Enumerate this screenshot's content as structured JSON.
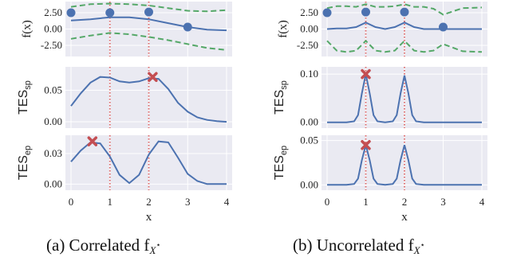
{
  "colors": {
    "panel_bg": "#EAEAF2",
    "grid": "#FFFFFF",
    "curve": "#4C72B0",
    "bounds": "#55A868",
    "vline": "#DD6666",
    "marker": "#C44E52",
    "point": "#4C72B0"
  },
  "captions": [
    {
      "prefix": "(a) Correlated f",
      "sub": "X",
      "sup": "⋆"
    },
    {
      "prefix": "(b) Uncorrelated f",
      "sub": "X",
      "sup": "⋆"
    }
  ],
  "shared": {
    "xlabel": "x",
    "x_ticks": [
      "0",
      "1",
      "2",
      "3",
      "4"
    ],
    "vlines_at": [
      1,
      2
    ]
  },
  "chart_data": [
    {
      "id": "a-top",
      "type": "line",
      "xlim": [
        0,
        4
      ],
      "ylim": [
        -4.2,
        4.2
      ],
      "ylabel": "f(x)",
      "yticks": [
        2.5,
        0.0,
        -2.5
      ],
      "yticklabels": [
        "2.50",
        "0.00",
        "-2.50"
      ],
      "observations": {
        "x": [
          0,
          1,
          2,
          3
        ],
        "y": [
          2.5,
          2.5,
          2.6,
          0.3
        ]
      },
      "mean": {
        "x": [
          0,
          0.5,
          1,
          1.5,
          2,
          2.5,
          3,
          3.5,
          4
        ],
        "y": [
          1.3,
          1.5,
          1.8,
          1.8,
          1.5,
          0.9,
          0.3,
          -0.1,
          -0.2
        ]
      },
      "upper": {
        "x": [
          0,
          0.5,
          1,
          1.5,
          2,
          2.5,
          3,
          3.5,
          4
        ],
        "y": [
          3.4,
          3.8,
          3.9,
          3.8,
          3.6,
          3.2,
          2.8,
          2.7,
          2.9
        ]
      },
      "lower": {
        "x": [
          0,
          0.5,
          1,
          1.5,
          2,
          2.5,
          3,
          3.5,
          4
        ],
        "y": [
          -1.5,
          -1.0,
          -0.6,
          -0.8,
          -1.2,
          -1.7,
          -2.3,
          -2.9,
          -3.2
        ]
      }
    },
    {
      "id": "a-mid",
      "type": "line",
      "xlim": [
        0,
        4
      ],
      "ylim": [
        -0.01,
        0.087
      ],
      "ylabel_main": "TES",
      "ylabel_sub": "sp",
      "yticks": [
        0.05,
        0.0
      ],
      "yticklabels": [
        "0.05",
        "0.00"
      ],
      "curve": {
        "x": [
          0,
          0.25,
          0.5,
          0.75,
          1,
          1.25,
          1.5,
          1.75,
          2,
          2.25,
          2.5,
          2.75,
          3,
          3.25,
          3.5,
          3.75,
          4
        ],
        "y": [
          0.025,
          0.045,
          0.062,
          0.071,
          0.07,
          0.064,
          0.062,
          0.064,
          0.069,
          0.068,
          0.052,
          0.03,
          0.016,
          0.007,
          0.003,
          0.001,
          0.0
        ]
      },
      "marker": {
        "x": 2.1,
        "y": 0.071
      }
    },
    {
      "id": "a-bot",
      "type": "line",
      "xlim": [
        0,
        4
      ],
      "ylim": [
        -0.006,
        0.048
      ],
      "ylabel_main": "TES",
      "ylabel_sub": "ep",
      "yticks": [
        0.03,
        0.0
      ],
      "yticklabels": [
        "0.03",
        "0.00"
      ],
      "curve": {
        "x": [
          0,
          0.25,
          0.5,
          0.75,
          1,
          1.25,
          1.5,
          1.75,
          2,
          2.25,
          2.5,
          2.75,
          3,
          3.25,
          3.5,
          3.75,
          4
        ],
        "y": [
          0.022,
          0.033,
          0.041,
          0.04,
          0.027,
          0.009,
          0.001,
          0.009,
          0.029,
          0.042,
          0.041,
          0.026,
          0.01,
          0.003,
          0.0,
          0.0,
          0.0
        ]
      },
      "marker": {
        "x": 0.55,
        "y": 0.042
      }
    },
    {
      "id": "b-top",
      "type": "line",
      "xlim": [
        0,
        4
      ],
      "ylim": [
        -4.2,
        4.2
      ],
      "ylabel": "f(x)",
      "yticks": [
        2.5,
        0.0,
        -2.5
      ],
      "yticklabels": [
        "2.50",
        "0.00",
        "-2.50"
      ],
      "observations": {
        "x": [
          0,
          1,
          2,
          3
        ],
        "y": [
          2.5,
          2.6,
          2.6,
          0.3
        ]
      },
      "mean": {
        "x": [
          0,
          0.25,
          0.5,
          0.75,
          1,
          1.25,
          1.5,
          1.75,
          2,
          2.25,
          2.5,
          2.75,
          3,
          3.5,
          4
        ],
        "y": [
          0.0,
          0.1,
          0.1,
          0.3,
          1.0,
          0.3,
          0.0,
          0.3,
          1.0,
          0.3,
          0.0,
          0.0,
          0.0,
          0.0,
          0.0
        ]
      },
      "upper": {
        "x": [
          0,
          0.25,
          0.5,
          0.75,
          1,
          1.25,
          1.5,
          1.75,
          2,
          2.25,
          2.5,
          2.75,
          3,
          3.5,
          4
        ],
        "y": [
          3.2,
          3.5,
          3.5,
          3.4,
          3.8,
          3.4,
          3.4,
          3.5,
          3.8,
          3.4,
          3.4,
          3.1,
          2.2,
          3.2,
          3.3
        ]
      },
      "lower": {
        "x": [
          0,
          0.25,
          0.5,
          0.75,
          1,
          1.25,
          1.5,
          1.75,
          2,
          2.25,
          2.5,
          2.75,
          3,
          3.5,
          4
        ],
        "y": [
          -1.8,
          -3.3,
          -3.5,
          -3.3,
          -1.8,
          -3.3,
          -3.5,
          -3.3,
          -1.8,
          -3.3,
          -3.5,
          -3.3,
          -2.3,
          -3.4,
          -3.5
        ]
      }
    },
    {
      "id": "b-mid",
      "type": "line",
      "xlim": [
        0,
        4
      ],
      "ylim": [
        -0.012,
        0.115
      ],
      "ylabel_main": "TES",
      "ylabel_sub": "sp",
      "yticks": [
        0.1,
        0.0
      ],
      "yticklabels": [
        "0.10",
        "0.00"
      ],
      "curve": {
        "x": [
          0,
          0.5,
          0.7,
          0.8,
          0.9,
          1.0,
          1.1,
          1.2,
          1.3,
          1.5,
          1.7,
          1.8,
          1.9,
          2.0,
          2.1,
          2.2,
          2.3,
          2.5,
          3,
          4
        ],
        "y": [
          0.0,
          0.0,
          0.002,
          0.015,
          0.06,
          0.1,
          0.06,
          0.015,
          0.002,
          0.0,
          0.002,
          0.015,
          0.06,
          0.097,
          0.06,
          0.015,
          0.002,
          0.0,
          0.0,
          0.0
        ]
      },
      "marker": {
        "x": 1.0,
        "y": 0.1
      }
    },
    {
      "id": "b-bot",
      "type": "line",
      "xlim": [
        0,
        4
      ],
      "ylim": [
        -0.006,
        0.056
      ],
      "ylabel_main": "TES",
      "ylabel_sub": "ep",
      "yticks": [
        0.05,
        0.0
      ],
      "yticklabels": [
        "0.05",
        "0.00"
      ],
      "curve": {
        "x": [
          0,
          0.5,
          0.7,
          0.8,
          0.9,
          1.0,
          1.1,
          1.2,
          1.3,
          1.5,
          1.7,
          1.8,
          1.9,
          2.0,
          2.1,
          2.2,
          2.3,
          2.5,
          3,
          4
        ],
        "y": [
          0.0,
          0.0,
          0.001,
          0.007,
          0.028,
          0.045,
          0.028,
          0.007,
          0.001,
          0.0,
          0.001,
          0.007,
          0.028,
          0.045,
          0.028,
          0.007,
          0.001,
          0.0,
          0.0,
          0.0
        ]
      },
      "marker": {
        "x": 1.0,
        "y": 0.045
      }
    }
  ]
}
